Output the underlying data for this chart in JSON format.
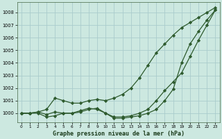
{
  "xlabel": "Graphe pression niveau de la mer (hPa)",
  "background_color": "#cce8e0",
  "grid_color": "#aacccc",
  "line_color": "#2d5a2d",
  "marker": "D",
  "markersize": 2.2,
  "linewidth": 0.9,
  "ylim": [
    999.3,
    1008.8
  ],
  "xlim": [
    -0.5,
    23.5
  ],
  "yticks": [
    1000,
    1001,
    1002,
    1003,
    1004,
    1005,
    1006,
    1007,
    1008
  ],
  "xticks": [
    0,
    1,
    2,
    3,
    4,
    5,
    6,
    7,
    8,
    9,
    10,
    11,
    12,
    13,
    14,
    15,
    16,
    17,
    18,
    19,
    20,
    21,
    22,
    23
  ],
  "series": [
    [
      1000.0,
      1000.0,
      1000.1,
      1000.3,
      1001.2,
      1001.0,
      1000.8,
      1000.8,
      1001.0,
      1001.1,
      1001.0,
      1001.2,
      1001.5,
      1002.0,
      1002.8,
      1003.8,
      1004.8,
      1005.5,
      1006.2,
      1006.8,
      1007.2,
      1007.6,
      1008.0,
      1008.4
    ],
    [
      1000.0,
      1000.0,
      1000.1,
      999.9,
      1000.1,
      1000.0,
      1000.0,
      1000.2,
      1000.4,
      1000.3,
      1000.0,
      999.7,
      999.7,
      999.8,
      1000.0,
      1000.3,
      1001.0,
      1001.8,
      1002.5,
      1003.2,
      1004.5,
      1005.8,
      1007.0,
      1008.2
    ],
    [
      1000.0,
      1000.0,
      1000.0,
      999.7,
      999.8,
      1000.0,
      1000.0,
      1000.1,
      1000.3,
      1000.4,
      1000.0,
      999.6,
      999.6,
      999.7,
      999.8,
      1000.0,
      1000.3,
      1001.0,
      1001.9,
      1004.0,
      1005.5,
      1006.5,
      1007.4,
      1008.2
    ]
  ]
}
